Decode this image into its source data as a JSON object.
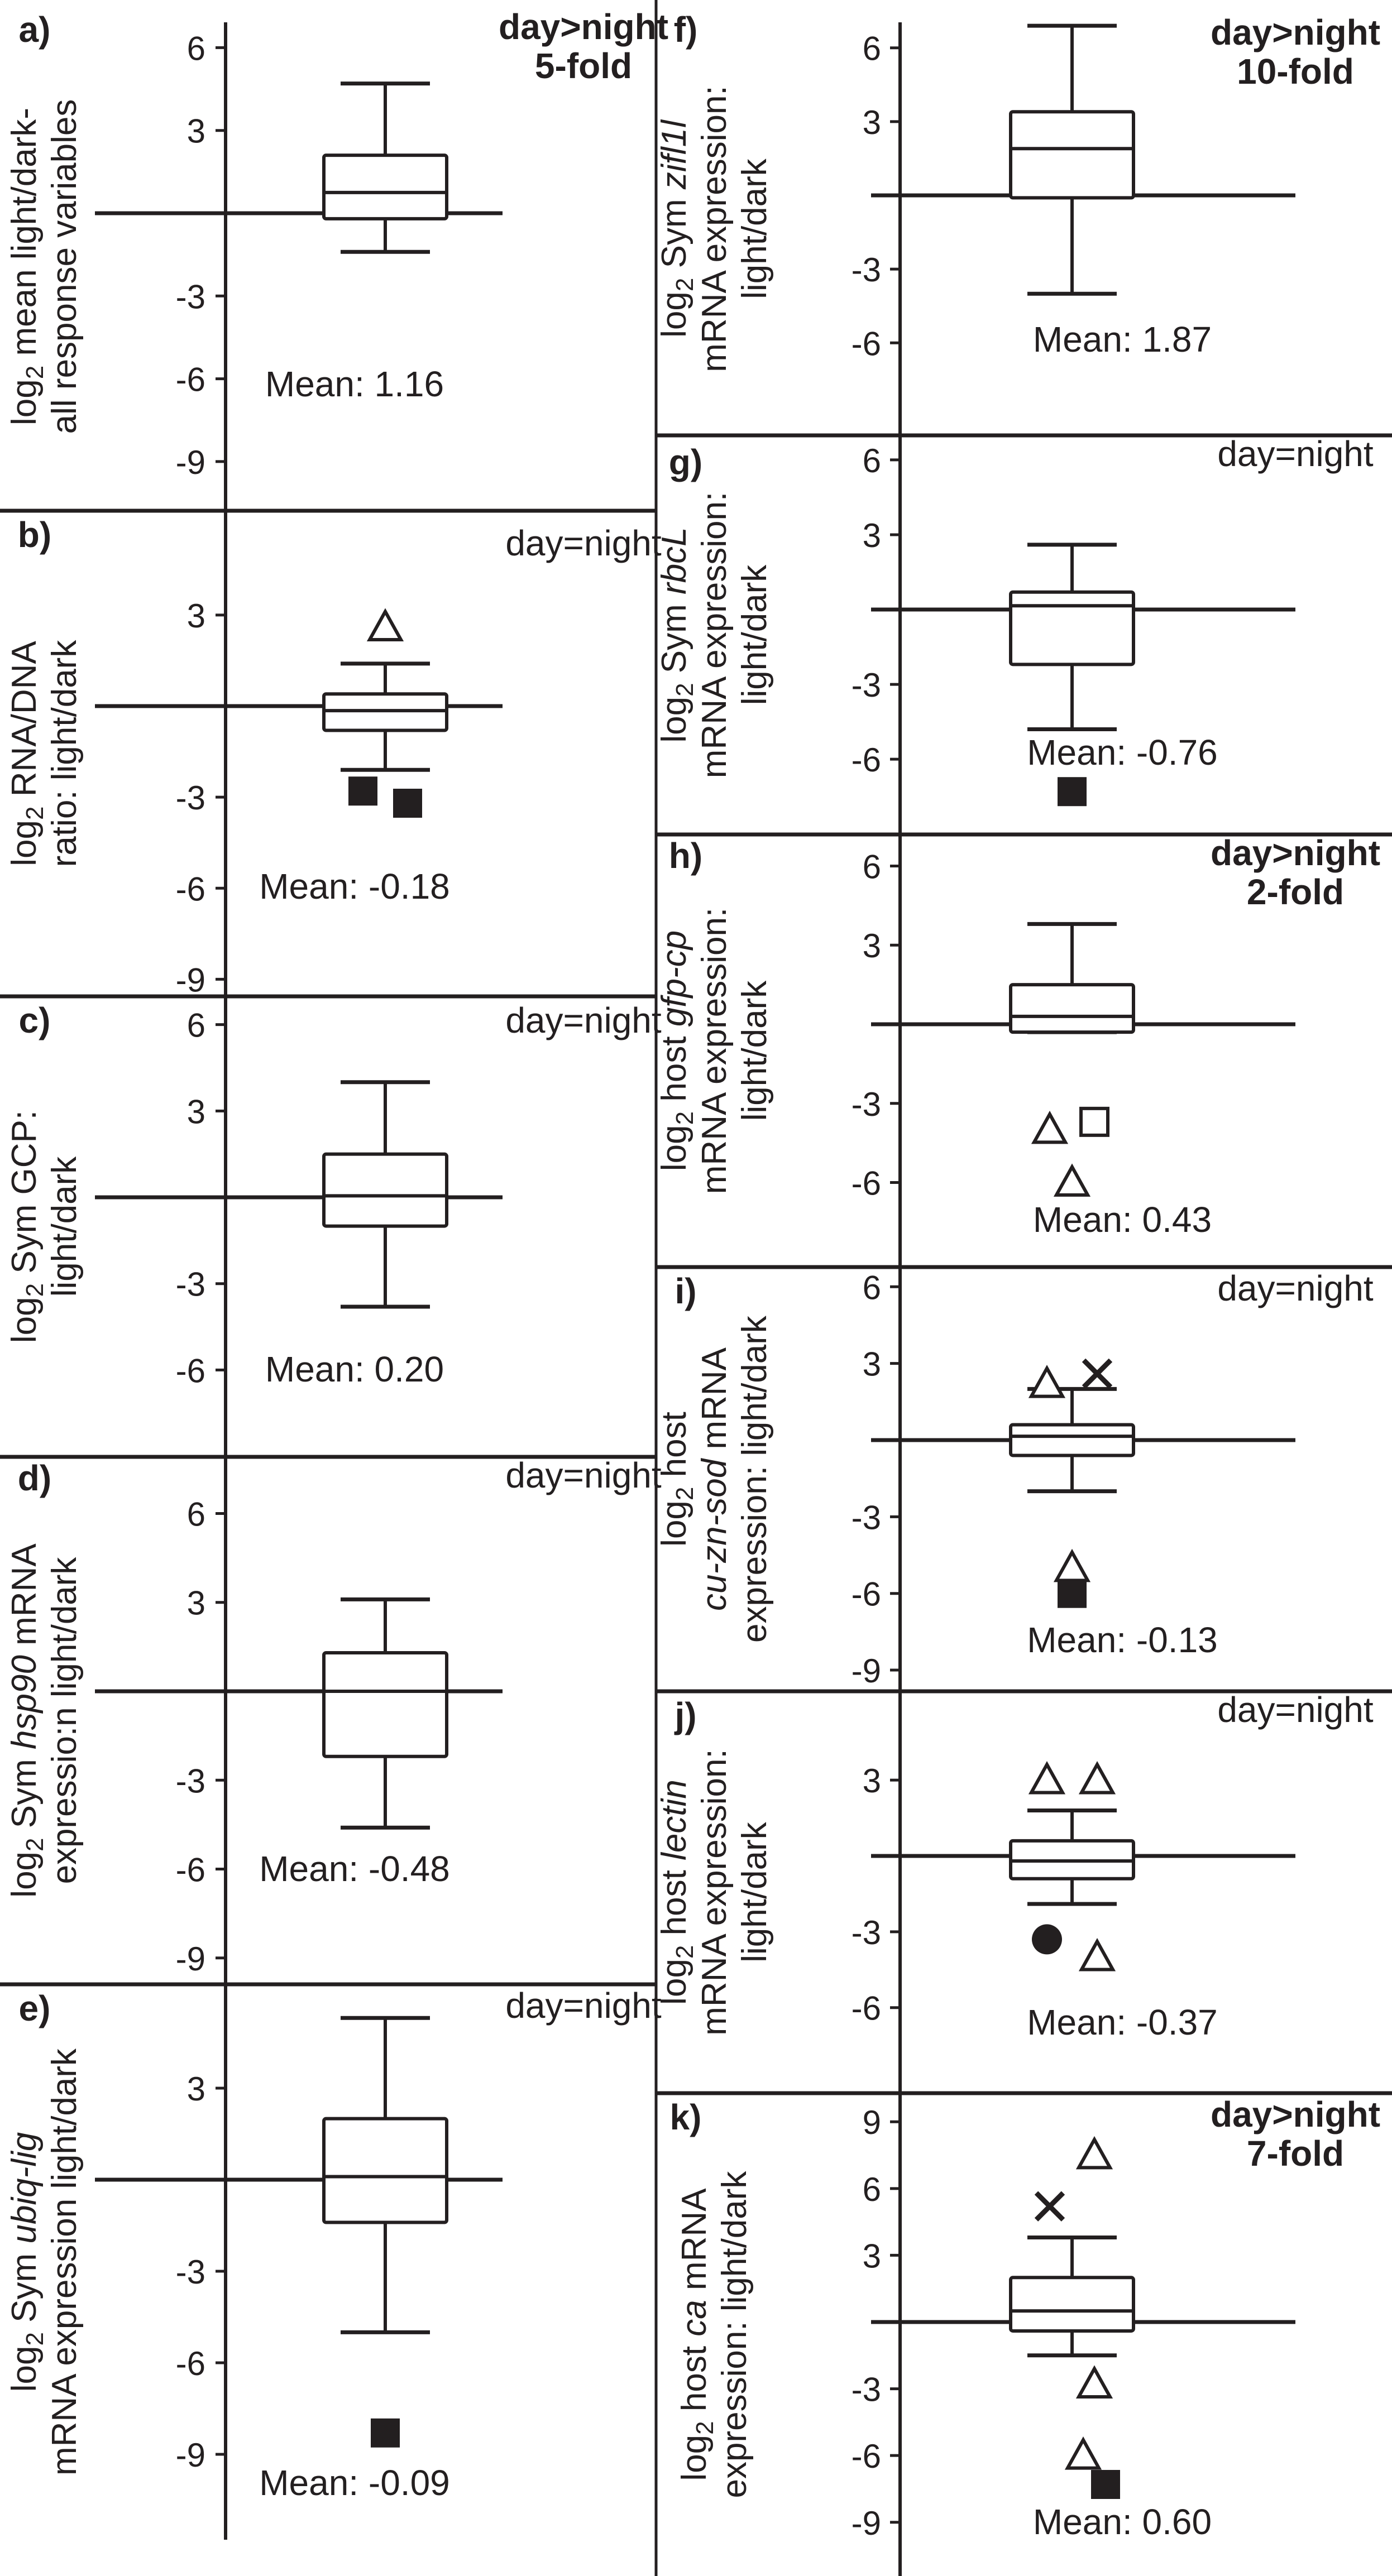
{
  "colors": {
    "ink": "#231f20",
    "background": "#ffffff"
  },
  "chart_data": [
    {
      "panel": "a",
      "type": "box",
      "letter": "a)",
      "ylabel_lines": [
        [
          "log",
          "2",
          " mean light/dark-"
        ],
        [
          "all response variables",
          "",
          ""
        ]
      ],
      "yticks": [
        "6",
        "3",
        "-3",
        "-6",
        "-9"
      ],
      "ytick_values": [
        6,
        3,
        -3,
        -6,
        -9
      ],
      "ylim": [
        -10.2,
        7.5
      ],
      "box": {
        "whisker_low": -1.4,
        "q1": -0.2,
        "median": 0.75,
        "q3": 2.1,
        "whisker_high": 4.7
      },
      "outliers": [],
      "significance": [
        "day>night",
        "5-fold"
      ],
      "significance_bold": true,
      "mean_text": "Mean: 1.16"
    },
    {
      "panel": "b",
      "type": "box",
      "letter": "b)",
      "ylabel_lines": [
        [
          "log",
          "2",
          " RNA/DNA"
        ],
        [
          "ratio: light/dark",
          "",
          ""
        ]
      ],
      "yticks": [
        "3",
        "-3",
        "-6",
        "-9"
      ],
      "ytick_values": [
        3,
        -3,
        -6,
        -9
      ],
      "ylim": [
        -9.7,
        6.3
      ],
      "box": {
        "whisker_low": -2.1,
        "q1": -0.8,
        "median": -0.15,
        "q3": 0.4,
        "whisker_high": 1.4
      },
      "outliers": [
        {
          "value": 2.6,
          "shape": "triangle",
          "offset": 0
        },
        {
          "value": -2.8,
          "shape": "square-filled",
          "offset": -0.4
        },
        {
          "value": -3.2,
          "shape": "square-filled",
          "offset": 0.4
        }
      ],
      "significance": [
        "day=night"
      ],
      "significance_bold": false,
      "mean_text": "Mean: -0.18"
    },
    {
      "panel": "c",
      "type": "box",
      "letter": "c)",
      "ylabel_lines": [
        [
          "log",
          "2",
          " Sym GCP:"
        ],
        [
          "light/dark",
          "",
          ""
        ]
      ],
      "yticks": [
        "6",
        "3",
        "-3",
        "-6"
      ],
      "ytick_values": [
        6,
        3,
        -3,
        -6
      ],
      "ylim": [
        -8.7,
        7.3
      ],
      "box": {
        "whisker_low": -3.8,
        "q1": -1.0,
        "median": 0.05,
        "q3": 1.5,
        "whisker_high": 4.0
      },
      "outliers": [],
      "significance": [
        "day=night"
      ],
      "significance_bold": false,
      "mean_text": "Mean: 0.20"
    },
    {
      "panel": "d",
      "type": "box",
      "letter": "d)",
      "ylabel_lines": [
        [
          "log",
          "2",
          " Sym ",
          "hsp90",
          " mRNA"
        ],
        [
          "expressio:n light/dark",
          "",
          ""
        ]
      ],
      "yticks": [
        "6",
        "3",
        "-3",
        "-6",
        "-9"
      ],
      "ytick_values": [
        6,
        3,
        -3,
        -6,
        -9
      ],
      "ylim": [
        -9.6,
        8.2
      ],
      "box": {
        "whisker_low": -4.6,
        "q1": -2.2,
        "median": 0.0,
        "q3": 1.3,
        "whisker_high": 3.1
      },
      "outliers": [],
      "significance": [
        "day=night"
      ],
      "significance_bold": false,
      "mean_text": "Mean: -0.48"
    },
    {
      "panel": "e",
      "type": "box",
      "letter": "e)",
      "ylabel_lines": [
        [
          "log",
          "2",
          " Sym ",
          "ubiq-lig"
        ],
        [
          "mRNA expression light/dark",
          "",
          ""
        ]
      ],
      "yticks": [
        "3",
        "-3",
        "-6",
        "-9"
      ],
      "ytick_values": [
        3,
        -3,
        -6,
        -9
      ],
      "ylim": [
        -11.5,
        6.7
      ],
      "box": {
        "whisker_low": -5.0,
        "q1": -1.4,
        "median": 0.1,
        "q3": 2.0,
        "whisker_high": 5.3
      },
      "outliers": [
        {
          "value": -8.3,
          "shape": "square-filled",
          "offset": 0
        }
      ],
      "significance": [
        "day=night"
      ],
      "significance_bold": false,
      "mean_text": "Mean: -0.09"
    },
    {
      "panel": "f",
      "type": "box",
      "letter": "f)",
      "ylabel_lines": [
        [
          "log",
          "2",
          " Sym ",
          "zifl1l",
          ""
        ],
        [
          "mRNA expression:",
          "",
          ""
        ],
        [
          "light/dark",
          "",
          ""
        ]
      ],
      "yticks": [
        "6",
        "3",
        "-3",
        "-6"
      ],
      "ytick_values": [
        6,
        3,
        -3,
        -6
      ],
      "ylim": [
        -9.3,
        7.5
      ],
      "box": {
        "whisker_low": -4.0,
        "q1": -0.1,
        "median": 1.9,
        "q3": 3.4,
        "whisker_high": 6.9
      },
      "outliers": [],
      "significance": [
        "day>night",
        "10-fold"
      ],
      "significance_bold": true,
      "mean_text": "Mean: 1.87"
    },
    {
      "panel": "g",
      "type": "box",
      "letter": "g)",
      "ylabel_lines": [
        [
          "log",
          "2",
          " Sym ",
          "rbcL"
        ],
        [
          "mRNA expression:",
          "",
          ""
        ],
        [
          "light/dark",
          "",
          ""
        ]
      ],
      "yticks": [
        "6",
        "3",
        "-3",
        "-6"
      ],
      "ytick_values": [
        6,
        3,
        -3,
        -6
      ],
      "ylim": [
        -9.1,
        6.9
      ],
      "box": {
        "whisker_low": -4.8,
        "q1": -2.2,
        "median": 0.15,
        "q3": 0.7,
        "whisker_high": 2.6
      },
      "outliers": [
        {
          "value": -7.3,
          "shape": "square-filled",
          "offset": 0
        }
      ],
      "significance": [
        "day=night"
      ],
      "significance_bold": false,
      "mean_text": "Mean: -0.76"
    },
    {
      "panel": "h",
      "type": "box",
      "letter": "h)",
      "ylabel_lines": [
        [
          "log",
          "2",
          " host ",
          "gfp-cp"
        ],
        [
          "mRNA expression:",
          "",
          ""
        ],
        [
          "light/dark",
          "",
          ""
        ]
      ],
      "yticks": [
        "6",
        "3",
        "-3",
        "-6"
      ],
      "ytick_values": [
        6,
        3,
        -3,
        -6
      ],
      "ylim": [
        -9.0,
        7.4
      ],
      "box": {
        "whisker_low": -0.3,
        "q1": -0.3,
        "median": 0.3,
        "q3": 1.5,
        "whisker_high": 3.8
      },
      "outliers": [
        {
          "value": -4.0,
          "shape": "triangle",
          "offset": -0.4
        },
        {
          "value": -3.7,
          "shape": "square",
          "offset": 0.4
        },
        {
          "value": -6.0,
          "shape": "triangle",
          "offset": 0
        }
      ],
      "significance": [
        "day>night",
        "2-fold"
      ],
      "significance_bold": true,
      "mean_text": "Mean: 0.43"
    },
    {
      "panel": "i",
      "type": "box",
      "letter": "i)",
      "ylabel_lines": [
        [
          "log",
          "2",
          " host"
        ],
        [
          "",
          "cu-zn-sod",
          " mRNA"
        ],
        [
          "expression: light/dark",
          "",
          ""
        ]
      ],
      "yticks": [
        "6",
        "3",
        "-3",
        "-6",
        "-9"
      ],
      "ytick_values": [
        6,
        3,
        -3,
        -6,
        -9
      ],
      "ylim": [
        -9.7,
        6.9
      ],
      "box": {
        "whisker_low": -2.0,
        "q1": -0.6,
        "median": 0.15,
        "q3": 0.6,
        "whisker_high": 2.0
      },
      "outliers": [
        {
          "value": 2.2,
          "shape": "triangle",
          "offset": -0.45
        },
        {
          "value": 2.6,
          "shape": "x",
          "offset": 0.45
        },
        {
          "value": -5.0,
          "shape": "triangle",
          "offset": 0
        },
        {
          "value": -6.0,
          "shape": "square-filled",
          "offset": 0
        }
      ],
      "significance": [
        "day=night"
      ],
      "significance_bold": false,
      "mean_text": "Mean: -0.13"
    },
    {
      "panel": "j",
      "type": "box",
      "letter": "j)",
      "ylabel_lines": [
        [
          "log",
          "2",
          " host ",
          "lectin"
        ],
        [
          "mRNA expression:",
          "",
          ""
        ],
        [
          "light/dark",
          "",
          ""
        ]
      ],
      "yticks": [
        "3",
        "-3",
        "-6"
      ],
      "ytick_values": [
        3,
        -3,
        -6
      ],
      "ylim": [
        -9.4,
        6.5
      ],
      "box": {
        "whisker_low": -1.9,
        "q1": -0.9,
        "median": -0.2,
        "q3": 0.6,
        "whisker_high": 1.8
      },
      "outliers": [
        {
          "value": 3.0,
          "shape": "triangle",
          "offset": -0.45
        },
        {
          "value": 3.0,
          "shape": "triangle",
          "offset": 0.45
        },
        {
          "value": -3.3,
          "shape": "circle-filled",
          "offset": -0.45
        },
        {
          "value": -4.0,
          "shape": "triangle",
          "offset": 0.45
        }
      ],
      "significance": [
        "day=night"
      ],
      "significance_bold": false,
      "mean_text": "Mean: -0.37"
    },
    {
      "panel": "k",
      "type": "box",
      "letter": "k)",
      "ylabel_lines": [
        [
          "log",
          "2",
          " host ",
          "ca",
          " mRNA"
        ],
        [
          "expression: light/dark",
          "",
          ""
        ]
      ],
      "yticks": [
        "9",
        "6",
        "3",
        "-3",
        "-6",
        "-9"
      ],
      "ytick_values": [
        9,
        6,
        3,
        -3,
        -6,
        -9
      ],
      "ylim": [
        -10.7,
        11.0
      ],
      "box": {
        "whisker_low": -1.5,
        "q1": -0.4,
        "median": 0.5,
        "q3": 2.0,
        "whisker_high": 3.8
      },
      "outliers": [
        {
          "value": 7.5,
          "shape": "triangle",
          "offset": 0.4
        },
        {
          "value": 5.2,
          "shape": "x",
          "offset": -0.4
        },
        {
          "value": -2.8,
          "shape": "triangle",
          "offset": 0.4
        },
        {
          "value": -6.0,
          "shape": "triangle",
          "offset": 0.2
        },
        {
          "value": -7.3,
          "shape": "square-filled",
          "offset": 0.6
        }
      ],
      "significance": [
        "day>night",
        "7-fold"
      ],
      "significance_bold": true,
      "mean_text": "Mean: 0.60"
    }
  ]
}
